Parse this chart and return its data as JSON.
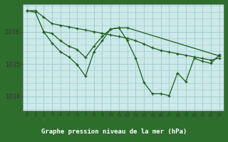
{
  "bg_color": "#cce8e8",
  "plot_bg_color": "#cce8e8",
  "grid_color": "#99cccc",
  "line_color": "#1a5c1a",
  "footer_bg": "#2d6e2d",
  "footer_text_color": "#ffffff",
  "title": "Graphe pression niveau de la mer (hPa)",
  "yticks": [
    1034,
    1035,
    1036
  ],
  "ylim": [
    1033.55,
    1036.85
  ],
  "xlim": [
    -0.5,
    23.5
  ],
  "series": [
    {
      "x": [
        0,
        1,
        2,
        3,
        4,
        5,
        6,
        7,
        8,
        9,
        10,
        11,
        12,
        13,
        14,
        15,
        16,
        17,
        18,
        19,
        20,
        21,
        22,
        23
      ],
      "y": [
        1036.65,
        1036.65,
        1036.45,
        1036.25,
        1036.2,
        1036.15,
        1036.1,
        1036.05,
        1036.0,
        1035.95,
        1035.9,
        1035.85,
        1035.8,
        1035.72,
        1035.62,
        1035.5,
        1035.42,
        1035.37,
        1035.32,
        1035.27,
        1035.22,
        1035.17,
        1035.12,
        1035.18
      ]
    },
    {
      "x": [
        0,
        1,
        2,
        3,
        4,
        5,
        6,
        7,
        8,
        9,
        10,
        11,
        12,
        23
      ],
      "y": [
        1036.65,
        1036.6,
        1036.0,
        1035.95,
        1035.72,
        1035.55,
        1035.45,
        1035.2,
        1035.55,
        1035.85,
        1036.08,
        1036.12,
        1036.12,
        1035.25
      ]
    },
    {
      "x": [
        2,
        3,
        4,
        5,
        6,
        7,
        8,
        9,
        10,
        11,
        12,
        13,
        14,
        15,
        16,
        17,
        18,
        19,
        20,
        21,
        22,
        23
      ],
      "y": [
        1036.0,
        1035.65,
        1035.38,
        1035.22,
        1034.98,
        1034.62,
        1035.38,
        1035.72,
        1036.08,
        1036.12,
        1035.72,
        1035.18,
        1034.42,
        1034.08,
        1034.08,
        1034.02,
        1034.72,
        1034.45,
        1035.18,
        1035.08,
        1035.02,
        1035.28
      ]
    }
  ]
}
